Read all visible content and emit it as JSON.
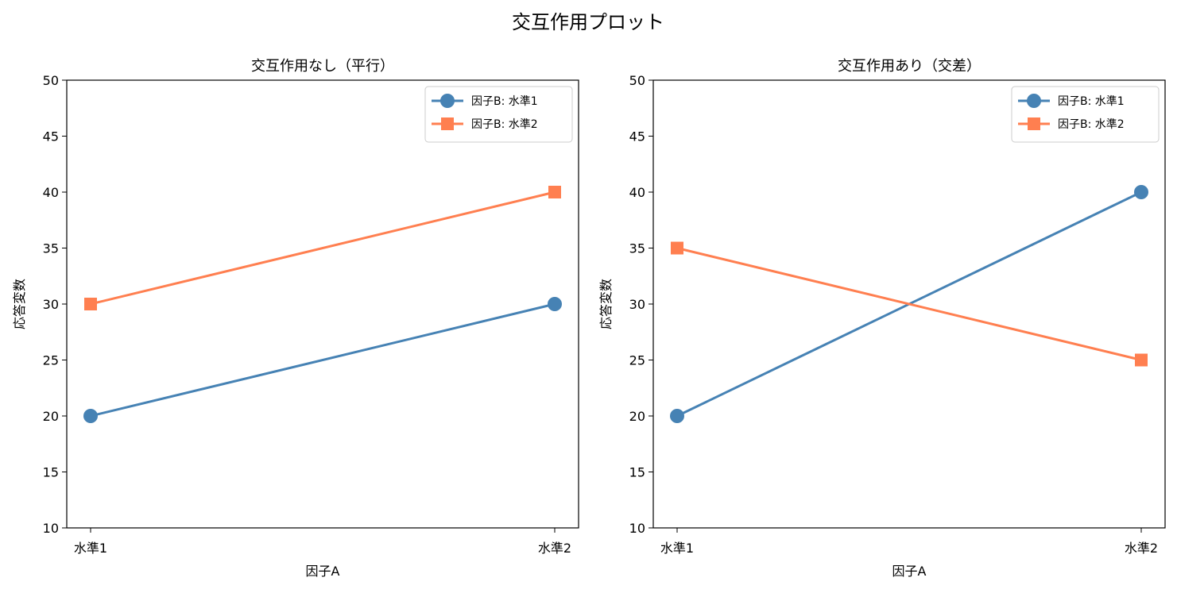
{
  "suptitle": "交互作用プロット",
  "colors": {
    "series1": "#4682B4",
    "series2": "#FF7F50"
  },
  "chart_data": [
    {
      "type": "line",
      "title": "交互作用なし（平行）",
      "xlabel": "因子A",
      "ylabel": "応答変数",
      "categories": [
        "水準1",
        "水準2"
      ],
      "ylim": [
        10,
        50
      ],
      "yticks": [
        10,
        15,
        20,
        25,
        30,
        35,
        40,
        45,
        50
      ],
      "legend_position": "upper right",
      "grid": false,
      "series": [
        {
          "name": "因子B: 水準1",
          "values": [
            20,
            30
          ],
          "color": "#4682B4",
          "marker": "circle"
        },
        {
          "name": "因子B: 水準2",
          "values": [
            30,
            40
          ],
          "color": "#FF7F50",
          "marker": "square"
        }
      ]
    },
    {
      "type": "line",
      "title": "交互作用あり（交差）",
      "xlabel": "因子A",
      "ylabel": "応答変数",
      "categories": [
        "水準1",
        "水準2"
      ],
      "ylim": [
        10,
        50
      ],
      "yticks": [
        10,
        15,
        20,
        25,
        30,
        35,
        40,
        45,
        50
      ],
      "legend_position": "upper right",
      "grid": false,
      "series": [
        {
          "name": "因子B: 水準1",
          "values": [
            20,
            40
          ],
          "color": "#4682B4",
          "marker": "circle"
        },
        {
          "name": "因子B: 水準2",
          "values": [
            35,
            25
          ],
          "color": "#FF7F50",
          "marker": "square"
        }
      ]
    }
  ]
}
